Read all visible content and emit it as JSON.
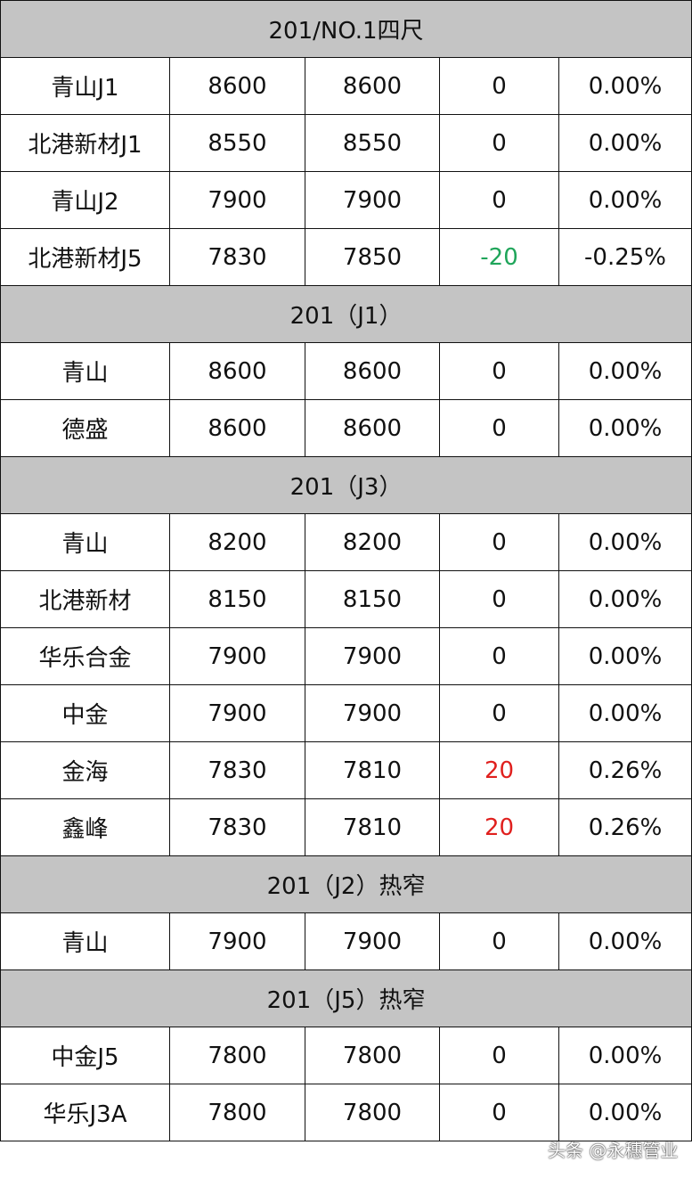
{
  "colors": {
    "header_bg": "#c4c4c4",
    "up": "#e0201e",
    "down": "#1fa55a"
  },
  "sections": [
    {
      "title": "201/NO.1四尺",
      "rows": [
        {
          "name": "青山J1",
          "today": "8600",
          "prev": "8600",
          "change": "0",
          "pct": "0.00%",
          "dir": ""
        },
        {
          "name": "北港新材J1",
          "today": "8550",
          "prev": "8550",
          "change": "0",
          "pct": "0.00%",
          "dir": ""
        },
        {
          "name": "青山J2",
          "today": "7900",
          "prev": "7900",
          "change": "0",
          "pct": "0.00%",
          "dir": ""
        },
        {
          "name": "北港新材J5",
          "today": "7830",
          "prev": "7850",
          "change": "-20",
          "pct": "-0.25%",
          "dir": "down"
        }
      ]
    },
    {
      "title": "201（J1）",
      "rows": [
        {
          "name": "青山",
          "today": "8600",
          "prev": "8600",
          "change": "0",
          "pct": "0.00%",
          "dir": ""
        },
        {
          "name": "德盛",
          "today": "8600",
          "prev": "8600",
          "change": "0",
          "pct": "0.00%",
          "dir": ""
        }
      ]
    },
    {
      "title": "201（J3）",
      "rows": [
        {
          "name": "青山",
          "today": "8200",
          "prev": "8200",
          "change": "0",
          "pct": "0.00%",
          "dir": ""
        },
        {
          "name": "北港新材",
          "today": "8150",
          "prev": "8150",
          "change": "0",
          "pct": "0.00%",
          "dir": ""
        },
        {
          "name": "华乐合金",
          "today": "7900",
          "prev": "7900",
          "change": "0",
          "pct": "0.00%",
          "dir": ""
        },
        {
          "name": "中金",
          "today": "7900",
          "prev": "7900",
          "change": "0",
          "pct": "0.00%",
          "dir": ""
        },
        {
          "name": "金海",
          "today": "7830",
          "prev": "7810",
          "change": "20",
          "pct": "0.26%",
          "dir": "up"
        },
        {
          "name": "鑫峰",
          "today": "7830",
          "prev": "7810",
          "change": "20",
          "pct": "0.26%",
          "dir": "up"
        }
      ]
    },
    {
      "title": "201（J2）热窄",
      "rows": [
        {
          "name": "青山",
          "today": "7900",
          "prev": "7900",
          "change": "0",
          "pct": "0.00%",
          "dir": ""
        }
      ]
    },
    {
      "title": "201（J5）热窄",
      "rows": [
        {
          "name": "中金J5",
          "today": "7800",
          "prev": "7800",
          "change": "0",
          "pct": "0.00%",
          "dir": ""
        },
        {
          "name": "华乐J3A",
          "today": "7800",
          "prev": "7800",
          "change": "0",
          "pct": "0.00%",
          "dir": ""
        }
      ]
    }
  ],
  "watermark": "头条 @永穗管业"
}
